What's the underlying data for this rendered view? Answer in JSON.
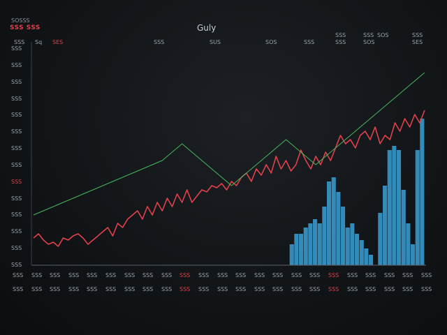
{
  "header": {
    "title": "Guly",
    "brand_top": "SOSSS",
    "brand": "SSS SSS"
  },
  "top_labels": [
    {
      "text": "Sq"
    },
    {
      "text": "SES"
    },
    {
      "text": "SSS"
    },
    {
      "text": "SUS"
    },
    {
      "text": "SOS"
    },
    {
      "text": "SSS"
    },
    {
      "text": "SSS"
    },
    {
      "text": "SSS"
    },
    {
      "text": "SSS"
    },
    {
      "text": "SOS"
    },
    {
      "text": "SSS"
    },
    {
      "text": "SES"
    },
    {
      "text": "SOS"
    },
    {
      "text": "SSS"
    }
  ],
  "colors": {
    "red": "#e2414b",
    "blue": "#3aa0d6",
    "green": "#46b85c",
    "orange": "#d98a2b",
    "grid": "#2a2f35"
  },
  "chart_data": {
    "type": "bar",
    "title": "Guly",
    "xlabel": "",
    "ylabel": "",
    "ylim": [
      0,
      100
    ],
    "grid": false,
    "y_tick_labels": [
      "SSS",
      "SSS",
      "SSS",
      "SSS",
      "SSS",
      "SSS",
      "SSS",
      "SSS",
      "SSS",
      "SSS",
      "SSS",
      "SSS",
      "SSS",
      "SSS"
    ],
    "x_tick_labels": [
      "SSS",
      "SSS",
      "SSS",
      "SSS",
      "SSS",
      "SSS",
      "SSS",
      "SSS",
      "SSS",
      "SSS",
      "SSS",
      "SSS",
      "SSS",
      "SSS",
      "SSS",
      "SSS",
      "SSS",
      "SSS",
      "SSS",
      "SSS",
      "SSS",
      "SSS",
      "SSS"
    ],
    "bars": [
      {
        "x": 0.0,
        "value": 0
      },
      {
        "x": 1.0,
        "value": 0
      },
      {
        "x": 2.0,
        "value": 0
      },
      {
        "x": 3.0,
        "value": 0
      },
      {
        "x": 4.0,
        "value": 0
      },
      {
        "x": 5.0,
        "value": 0
      },
      {
        "x": 6.0,
        "value": 0
      },
      {
        "x": 7.0,
        "value": 0
      },
      {
        "x": 8.0,
        "value": 0
      },
      {
        "x": 9.0,
        "value": 0
      },
      {
        "x": 10.0,
        "value": 0
      },
      {
        "x": 11.0,
        "value": 0
      },
      {
        "x": 12.0,
        "value": 0
      },
      {
        "x": 13.0,
        "value": 0
      },
      {
        "x": 14.0,
        "value": 0
      },
      {
        "x": 15.0,
        "value": 0
      },
      {
        "x": 16.0,
        "value": 0
      },
      {
        "x": 17.0,
        "value": 0
      },
      {
        "x": 18.0,
        "value": 0
      },
      {
        "x": 19.0,
        "value": 0
      },
      {
        "x": 20.0,
        "value": 0
      },
      {
        "x": 21.0,
        "value": 0
      },
      {
        "x": 22.0,
        "value": 0
      },
      {
        "x": 23.0,
        "value": 0
      },
      {
        "x": 24.0,
        "value": 0
      },
      {
        "x": 25.0,
        "value": 0
      },
      {
        "x": 26.0,
        "value": 0
      },
      {
        "x": 27.0,
        "value": 0
      },
      {
        "x": 28.0,
        "value": 0
      },
      {
        "x": 29.0,
        "value": 0
      },
      {
        "x": 30.0,
        "value": 0
      },
      {
        "x": 31.0,
        "value": 0
      },
      {
        "x": 32.0,
        "value": 0
      },
      {
        "x": 33.0,
        "value": 0
      },
      {
        "x": 34.0,
        "value": 0
      },
      {
        "x": 35.0,
        "value": 0
      },
      {
        "x": 36.0,
        "value": 0
      },
      {
        "x": 37.0,
        "value": 0
      },
      {
        "x": 38.0,
        "value": 0
      },
      {
        "x": 39.0,
        "value": 0
      },
      {
        "x": 40.0,
        "value": 0
      },
      {
        "x": 41.0,
        "value": 0
      },
      {
        "x": 42.0,
        "value": 0
      },
      {
        "x": 43.0,
        "value": 0
      },
      {
        "x": 44.0,
        "value": 0
      },
      {
        "x": 45.0,
        "value": 0
      },
      {
        "x": 46.0,
        "value": 0
      },
      {
        "x": 47.0,
        "value": 0
      },
      {
        "x": 48.0,
        "value": 0
      },
      {
        "x": 49.0,
        "value": 0
      },
      {
        "x": 50.0,
        "value": 0
      },
      {
        "x": 51.0,
        "value": 0
      },
      {
        "x": 52.0,
        "value": 0
      },
      {
        "x": 53.0,
        "value": 0
      },
      {
        "x": 54.0,
        "value": 0
      },
      {
        "x": 55.0,
        "value": 10
      },
      {
        "x": 56.0,
        "value": 15
      },
      {
        "x": 57.0,
        "value": 15
      },
      {
        "x": 58.0,
        "value": 18
      },
      {
        "x": 59.0,
        "value": 20
      },
      {
        "x": 60.0,
        "value": 22
      },
      {
        "x": 61.0,
        "value": 20
      },
      {
        "x": 62.0,
        "value": 28
      },
      {
        "x": 63.0,
        "value": 40
      },
      {
        "x": 64.0,
        "value": 42
      },
      {
        "x": 65.0,
        "value": 35
      },
      {
        "x": 66.0,
        "value": 28
      },
      {
        "x": 67.0,
        "value": 18
      },
      {
        "x": 68.0,
        "value": 20
      },
      {
        "x": 69.0,
        "value": 15
      },
      {
        "x": 70.0,
        "value": 12
      },
      {
        "x": 71.0,
        "value": 8
      },
      {
        "x": 72.0,
        "value": 5
      },
      {
        "x": 73.0,
        "value": 0
      },
      {
        "x": 74.0,
        "value": 25
      },
      {
        "x": 75.0,
        "value": 38
      },
      {
        "x": 76.0,
        "value": 55
      },
      {
        "x": 77.0,
        "value": 57
      },
      {
        "x": 78.0,
        "value": 55
      },
      {
        "x": 79.0,
        "value": 36
      },
      {
        "x": 80.0,
        "value": 20
      },
      {
        "x": 81.0,
        "value": 10
      },
      {
        "x": 82.0,
        "value": 55
      },
      {
        "x": 83.0,
        "value": 70
      }
    ],
    "series": [
      {
        "name": "",
        "color": "red",
        "values": [
          13,
          15,
          12,
          10,
          11,
          9,
          13,
          12,
          14,
          15,
          13,
          10,
          12,
          14,
          16,
          18,
          14,
          20,
          18,
          22,
          24,
          26,
          22,
          28,
          24,
          30,
          26,
          32,
          28,
          34,
          30,
          36,
          30,
          33,
          36,
          35,
          38,
          37,
          39,
          36,
          40,
          38,
          42,
          44,
          40,
          46,
          43,
          48,
          44,
          52,
          46,
          50,
          45,
          48,
          55,
          50,
          46,
          52,
          48,
          54,
          50,
          56,
          62,
          58,
          60,
          56,
          62,
          64,
          60,
          66,
          58,
          62,
          60,
          68,
          64,
          70,
          66,
          72,
          68,
          74
        ]
      },
      {
        "name": "",
        "color": "green",
        "values": [
          24,
          25,
          26,
          27,
          28,
          29,
          30,
          31,
          32,
          33,
          34,
          35,
          36,
          37,
          38,
          39,
          40,
          41,
          42,
          43,
          44,
          45,
          46,
          47,
          48,
          49,
          50,
          52,
          54,
          56,
          58,
          56,
          54,
          52,
          50,
          48,
          46,
          44,
          42,
          40,
          38,
          40,
          42,
          44,
          46,
          48,
          50,
          52,
          54,
          56,
          58,
          60,
          58,
          56,
          54,
          52,
          50,
          48,
          50,
          52,
          54,
          56,
          58,
          60,
          62,
          64,
          66,
          68,
          70,
          72,
          74,
          76,
          78,
          80,
          82,
          84,
          86,
          88,
          90,
          92
        ]
      }
    ]
  }
}
